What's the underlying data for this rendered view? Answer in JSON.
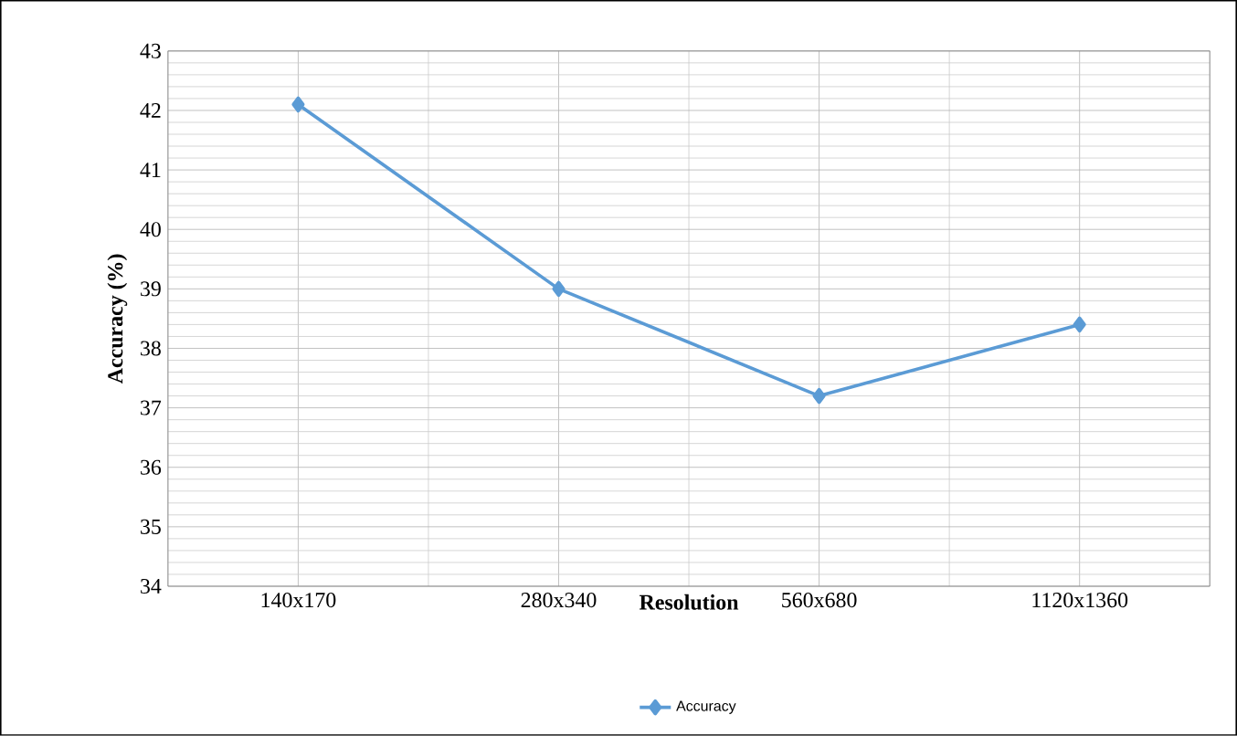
{
  "chart_data": {
    "type": "line",
    "xlabel": "Resolution",
    "ylabel": "Accuracy  (%)",
    "categories": [
      "140x170",
      "280x340",
      "560x680",
      "1120x1360"
    ],
    "series": [
      {
        "name": "Accuracy",
        "color": "#5b9bd5",
        "values": [
          42.1,
          39.0,
          37.2,
          38.4
        ]
      }
    ],
    "ylim": [
      34,
      43
    ],
    "yticks": [
      34,
      35,
      36,
      37,
      38,
      39,
      40,
      41,
      42,
      43
    ],
    "grid": true,
    "legend": "bottom",
    "marker": "diamond",
    "line_style": "solid"
  }
}
